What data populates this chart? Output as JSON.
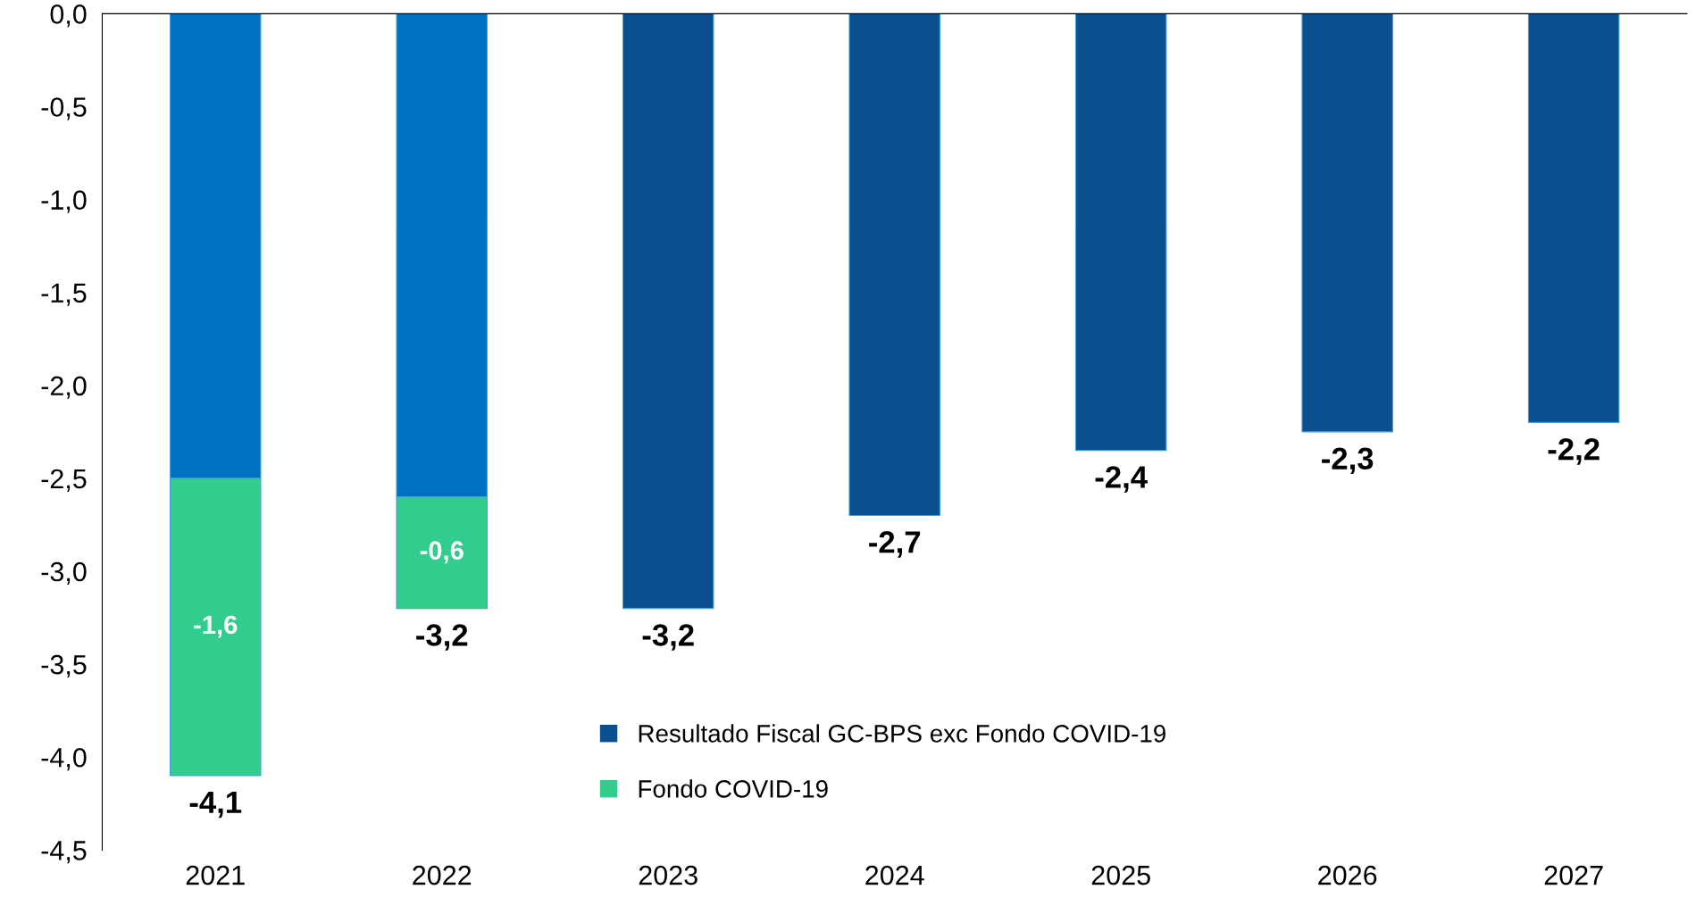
{
  "chart_data": {
    "type": "bar",
    "stacked": true,
    "categories": [
      "2021",
      "2022",
      "2023",
      "2024",
      "2025",
      "2026",
      "2027"
    ],
    "series": [
      {
        "name": "Resultado Fiscal GC-BPS exc Fondo COVID-19",
        "color": "#0b4f8f",
        "colors": [
          "#0070c0",
          "#0070c0",
          "#0b4f8f",
          "#0b4f8f",
          "#0b4f8f",
          "#0b4f8f",
          "#0b4f8f"
        ],
        "values": [
          -2.5,
          -2.6,
          -3.2,
          -2.7,
          -2.35,
          -2.25,
          -2.2
        ]
      },
      {
        "name": "Fondo COVID-19",
        "color": "#33cc8f",
        "values": [
          -1.6,
          -0.6,
          null,
          null,
          null,
          null,
          null
        ],
        "value_labels": [
          "-1,6",
          "-0,6",
          null,
          null,
          null,
          null,
          null
        ]
      }
    ],
    "totals": [
      "-4,1",
      "-3,2",
      "-3,2",
      "-2,7",
      "-2,4",
      "-2,3",
      "-2,2"
    ],
    "ylim": [
      -4.5,
      0
    ],
    "yticks": [
      {
        "value": 0,
        "label": "0,0"
      },
      {
        "value": -0.5,
        "label": "-0,5"
      },
      {
        "value": -1,
        "label": "-1,0"
      },
      {
        "value": -1.5,
        "label": "-1,5"
      },
      {
        "value": -2,
        "label": "-2,0"
      },
      {
        "value": -2.5,
        "label": "-2,5"
      },
      {
        "value": -3,
        "label": "-3,0"
      },
      {
        "value": -3.5,
        "label": "-3,5"
      },
      {
        "value": -4,
        "label": "-4,0"
      },
      {
        "value": -4.5,
        "label": "-4,5"
      }
    ],
    "grid": false,
    "legend": "bottom"
  }
}
